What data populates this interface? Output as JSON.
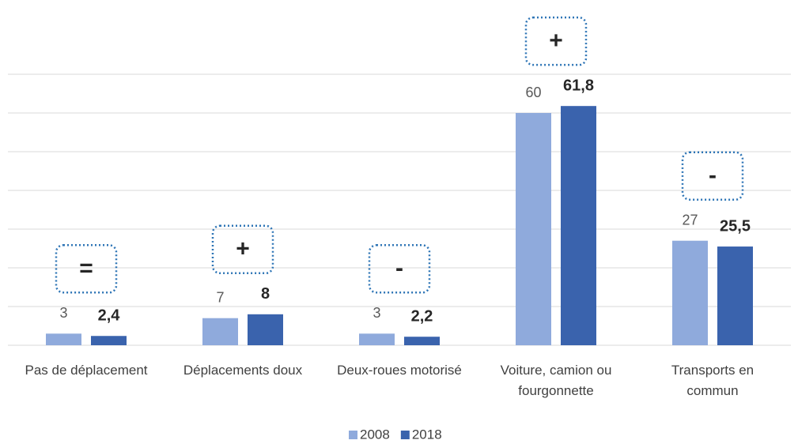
{
  "chart_data": {
    "type": "bar",
    "categories": [
      "Pas de déplacement",
      "Déplacements doux",
      "Deux-roues motorisé",
      "Voiture, camion ou\nfourgonnette",
      "Transports en\ncommun"
    ],
    "series": [
      {
        "name": "2008",
        "color": "#8faadc",
        "values": [
          3,
          7,
          3,
          60,
          27
        ]
      },
      {
        "name": "2018",
        "color": "#3a63ad",
        "values": [
          2.4,
          8,
          2.2,
          61.8,
          25.5
        ],
        "value_labels": [
          "2,4",
          "8",
          "2,2",
          "61,8",
          "25,5"
        ]
      }
    ],
    "annotations": [
      "=",
      "+",
      "-",
      "+",
      "-"
    ],
    "ylim": [
      0,
      70
    ],
    "yticks": [
      0,
      10,
      20,
      30,
      40,
      50,
      60,
      70
    ],
    "grid": true
  }
}
